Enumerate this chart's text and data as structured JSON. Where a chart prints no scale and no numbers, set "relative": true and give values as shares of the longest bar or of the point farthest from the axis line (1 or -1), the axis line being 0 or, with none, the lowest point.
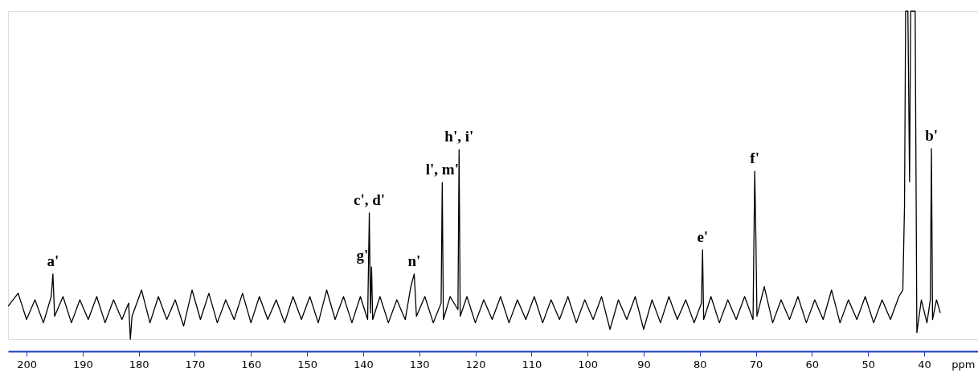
{
  "chart_data": {
    "type": "line",
    "relative": true,
    "xlabel": "ppm",
    "xlim": [
      203.3,
      30.4
    ],
    "xticks": [
      200,
      190,
      180,
      170,
      160,
      150,
      140,
      130,
      120,
      110,
      100,
      90,
      80,
      70,
      60,
      50,
      40
    ],
    "grid": false,
    "marker": "none",
    "line_style": "solid",
    "series": [
      {
        "color": "#000000",
        "x": [
          203.3,
          201.5,
          200.0,
          198.5,
          197.0,
          195.6,
          195.3,
          195.0,
          193.5,
          192.0,
          190.5,
          189.0,
          187.5,
          186.0,
          184.5,
          183.0,
          181.8,
          181.5,
          181.2,
          179.5,
          178.0,
          176.5,
          175.0,
          173.5,
          172.0,
          170.5,
          169.0,
          167.5,
          166.0,
          164.5,
          163.0,
          161.5,
          160.0,
          158.5,
          157.0,
          155.5,
          154.0,
          152.5,
          151.0,
          149.5,
          148.0,
          146.5,
          145.0,
          143.5,
          142.0,
          140.5,
          139.2,
          138.9,
          138.7,
          138.5,
          138.3,
          137.0,
          135.5,
          134.0,
          132.5,
          131.5,
          130.9,
          130.5,
          129.0,
          127.5,
          126.1,
          125.9,
          125.7,
          124.5,
          123.1,
          122.9,
          122.7,
          121.5,
          120.0,
          118.5,
          117.0,
          115.5,
          114.0,
          112.5,
          111.0,
          109.5,
          108.0,
          106.5,
          105.0,
          103.5,
          102.0,
          100.5,
          99.0,
          97.5,
          96.0,
          94.5,
          93.0,
          91.5,
          90.0,
          88.5,
          87.0,
          85.5,
          84.0,
          82.5,
          81.0,
          79.7,
          79.5,
          79.3,
          78.0,
          76.5,
          75.0,
          73.5,
          72.0,
          70.5,
          70.2,
          70.0,
          69.8,
          68.5,
          67.0,
          65.5,
          64.0,
          62.5,
          61.0,
          59.5,
          58.0,
          56.5,
          55.0,
          53.5,
          52.0,
          50.5,
          49.0,
          47.5,
          46.0,
          44.5,
          43.8,
          43.5,
          43.3,
          42.9,
          42.6,
          42.4,
          41.9,
          41.6,
          41.3,
          40.5,
          39.5,
          38.9,
          38.7,
          38.5,
          37.8,
          37.1
        ],
        "values": [
          0.1,
          0.14,
          0.06,
          0.12,
          0.05,
          0.13,
          0.199,
          0.07,
          0.13,
          0.05,
          0.12,
          0.06,
          0.13,
          0.05,
          0.12,
          0.06,
          0.11,
          0.0,
          0.07,
          0.15,
          0.05,
          0.13,
          0.06,
          0.12,
          0.04,
          0.15,
          0.06,
          0.14,
          0.05,
          0.12,
          0.06,
          0.14,
          0.05,
          0.13,
          0.06,
          0.12,
          0.05,
          0.13,
          0.06,
          0.13,
          0.05,
          0.15,
          0.06,
          0.13,
          0.05,
          0.13,
          0.06,
          0.385,
          0.08,
          0.22,
          0.06,
          0.13,
          0.05,
          0.12,
          0.06,
          0.16,
          0.199,
          0.07,
          0.13,
          0.05,
          0.11,
          0.478,
          0.06,
          0.13,
          0.09,
          0.578,
          0.07,
          0.13,
          0.05,
          0.12,
          0.06,
          0.13,
          0.05,
          0.12,
          0.06,
          0.13,
          0.05,
          0.12,
          0.06,
          0.13,
          0.05,
          0.12,
          0.06,
          0.13,
          0.03,
          0.12,
          0.06,
          0.13,
          0.03,
          0.12,
          0.05,
          0.13,
          0.06,
          0.12,
          0.05,
          0.11,
          0.272,
          0.06,
          0.13,
          0.05,
          0.12,
          0.06,
          0.13,
          0.06,
          0.512,
          0.319,
          0.07,
          0.16,
          0.05,
          0.12,
          0.06,
          0.13,
          0.05,
          0.12,
          0.06,
          0.15,
          0.05,
          0.12,
          0.06,
          0.13,
          0.05,
          0.12,
          0.06,
          0.13,
          0.15,
          0.407,
          1,
          1,
          0.48,
          1,
          1,
          1,
          0.02,
          0.12,
          0.05,
          0.12,
          0.581,
          0.06,
          0.12,
          0.08
        ]
      }
    ],
    "annotations": [
      {
        "text": "a'",
        "x": 195.3,
        "y": 0.199
      },
      {
        "text": "c', d'",
        "x": 138.9,
        "y": 0.385
      },
      {
        "text": "g'",
        "x": 138.5,
        "y": 0.22
      },
      {
        "text": "n'",
        "x": 130.9,
        "y": 0.199
      },
      {
        "text": "l', m'",
        "x": 125.9,
        "y": 0.478
      },
      {
        "text": "h', i'",
        "x": 122.9,
        "y": 0.578
      },
      {
        "text": "e'",
        "x": 79.5,
        "y": 0.272
      },
      {
        "text": "f'",
        "x": 70.2,
        "y": 0.512
      },
      {
        "text": "b'",
        "x": 38.7,
        "y": 0.581
      }
    ]
  }
}
